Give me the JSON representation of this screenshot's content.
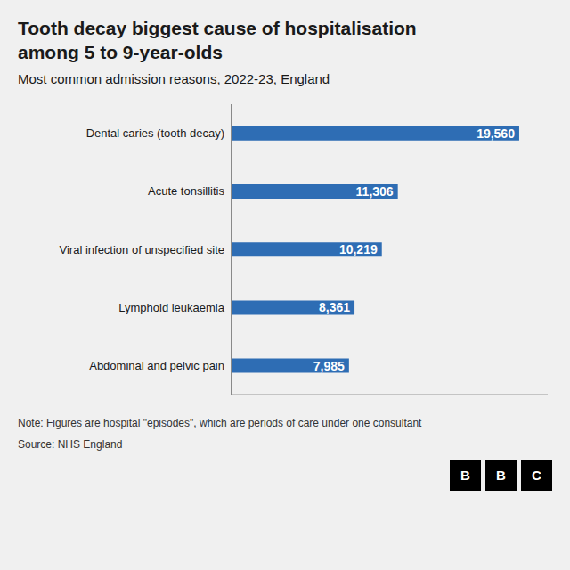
{
  "chart_data": {
    "type": "bar",
    "orientation": "horizontal",
    "title": "Tooth decay biggest cause of hospitalisation\namong 5 to 9-year-olds",
    "subtitle": "Most common admission reasons, 2022-23, England",
    "categories": [
      "Abdominal and pelvic pain",
      "Lymphoid leukaemia",
      "Viral infection of unspecified site",
      "Acute tonsillitis",
      "Dental caries (tooth decay)"
    ],
    "values": [
      7985,
      8361,
      10219,
      11306,
      19560
    ],
    "value_labels": [
      "7,985",
      "8,361",
      "10,219",
      "11,306",
      "19,560"
    ],
    "color": "#2e6db4",
    "xlim": [
      0,
      21500
    ],
    "data_labels": true,
    "tick_labels": "y",
    "grid": false,
    "annotations": [
      "Note: Figures are hospital \"episodes\", which are periods of care under one consultant",
      "Source: NHS England",
      "B",
      "B",
      "C"
    ]
  }
}
